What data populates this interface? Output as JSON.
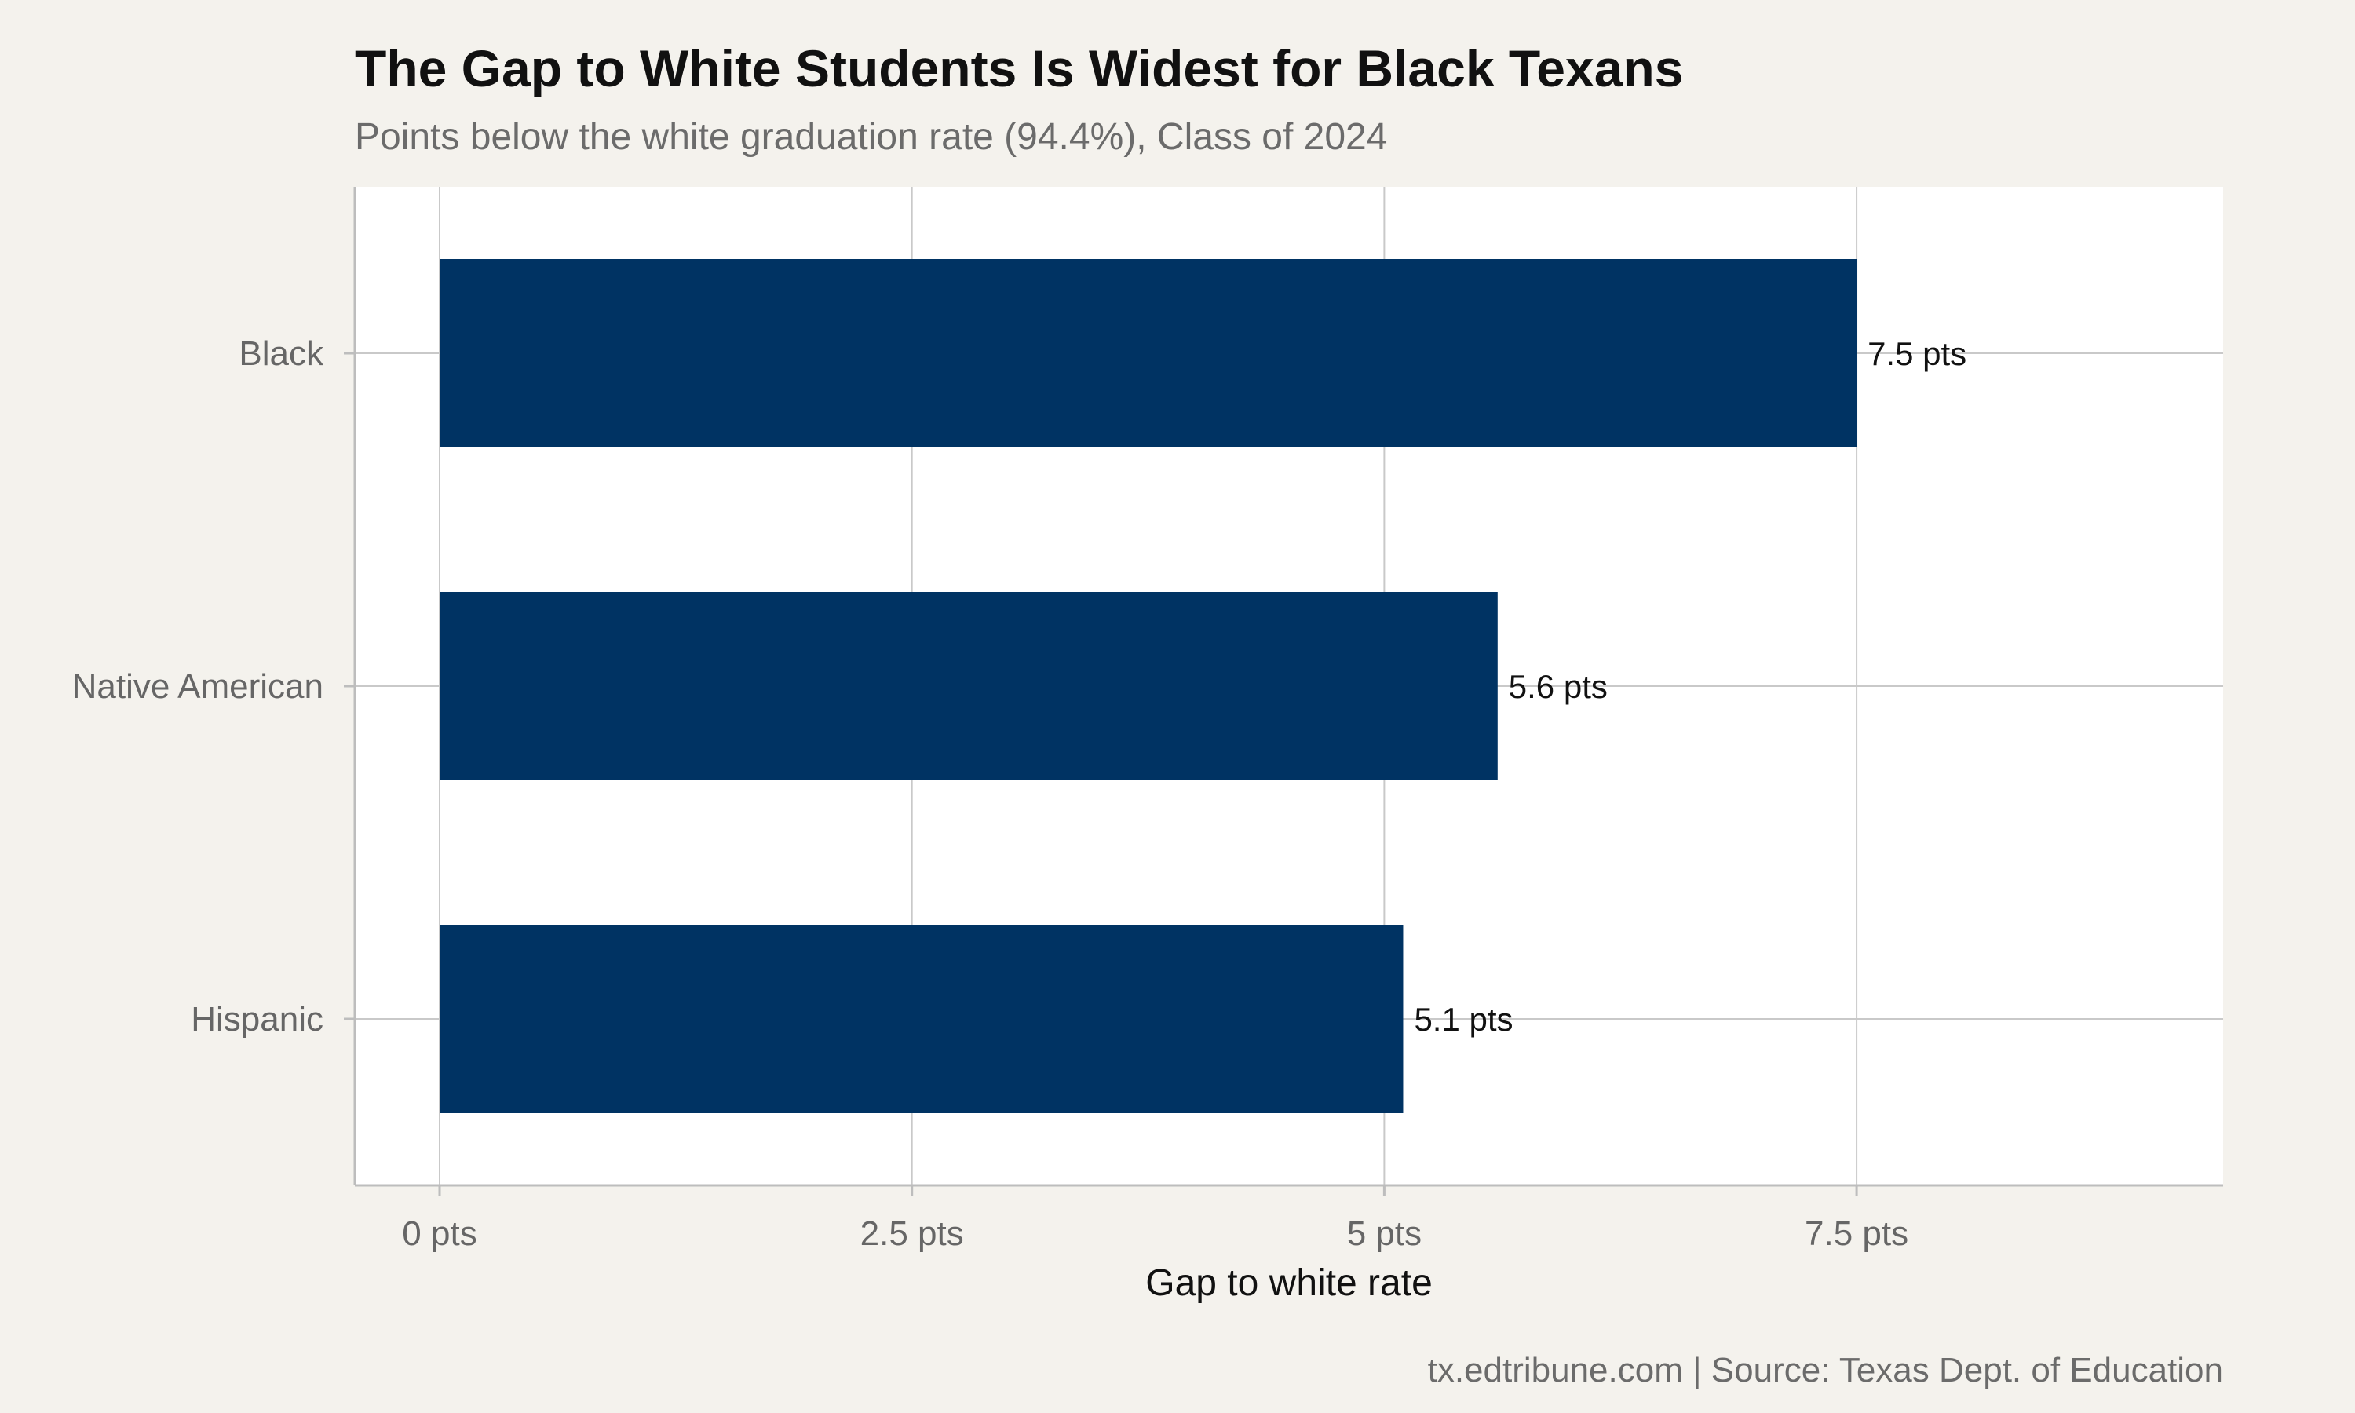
{
  "chart_data": {
    "type": "bar",
    "orientation": "horizontal",
    "title": "The Gap to White Students Is Widest for Black Texans",
    "subtitle": "Points below the white graduation rate (94.4%), Class of 2024",
    "xlabel": "Gap to white rate",
    "ylabel": "",
    "categories": [
      "Black",
      "Native American",
      "Hispanic"
    ],
    "values": [
      7.5,
      5.6,
      5.1
    ],
    "value_labels": [
      "7.5 pts",
      "5.6 pts",
      "5.1 pts"
    ],
    "xlim": [
      0,
      9.44
    ],
    "x_ticks": [
      0,
      2.5,
      5,
      7.5
    ],
    "x_tick_labels": [
      "0 pts",
      "2.5 pts",
      "5 pts",
      "7.5 pts"
    ],
    "grid": true,
    "legend": "none",
    "caption": "tx.edtribune.com | Source: Texas Dept. of Education",
    "colors": {
      "bar": "#003363",
      "panel": "#ffffff",
      "background": "#f4f2ed"
    }
  }
}
